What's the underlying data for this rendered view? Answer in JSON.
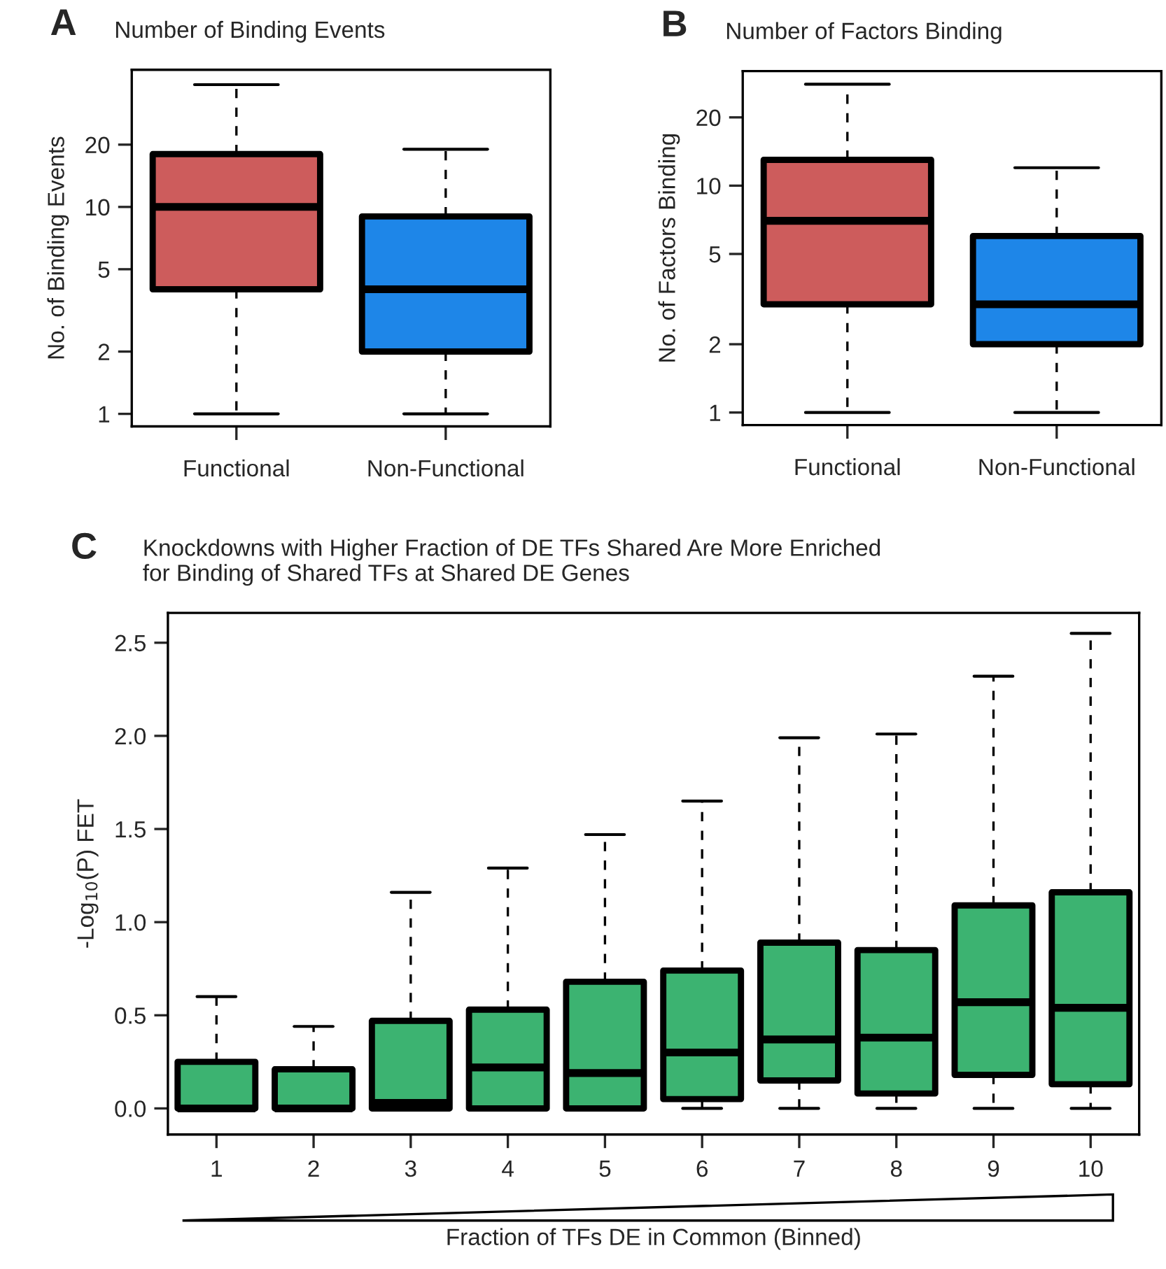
{
  "chart_data": [
    {
      "type": "box",
      "title": "Number of Binding Events",
      "ylabel": "No. of Binding Events",
      "annotations": [
        "A"
      ],
      "log": true,
      "ylim": [
        0.87,
        46
      ],
      "yticks": [
        1,
        2,
        5,
        10,
        20
      ],
      "categories": [
        "Functional",
        "Non-Functional"
      ],
      "boxes": [
        {
          "low": 1,
          "q1": 4,
          "median": 10,
          "q3": 18,
          "high": 39
        },
        {
          "low": 1,
          "q1": 2,
          "median": 4,
          "q3": 9,
          "high": 19
        }
      ],
      "colors": [
        "#cd5c5c",
        "#1e86e8"
      ]
    },
    {
      "type": "box",
      "title": "Number of Factors Binding",
      "ylabel": "No. of Factors Binding",
      "annotations": [
        "B"
      ],
      "log": true,
      "ylim": [
        0.88,
        32
      ],
      "yticks": [
        1,
        2,
        5,
        10,
        20
      ],
      "categories": [
        "Functional",
        "Non-Functional"
      ],
      "boxes": [
        {
          "low": 1,
          "q1": 3,
          "median": 7,
          "q3": 13,
          "high": 28
        },
        {
          "low": 1,
          "q1": 2,
          "median": 3,
          "q3": 6,
          "high": 12
        }
      ],
      "colors": [
        "#cd5c5c",
        "#1e86e8"
      ]
    },
    {
      "type": "box",
      "title": "Knockdowns with Higher Fraction of DE TFs Shared Are More Enriched\nfor Binding of Shared TFs at Shared DE Genes",
      "ylabel": "-Log$_{10}$(P) FET",
      "xlabel": "Fraction of TFs DE in Common (Binned)",
      "annotations": [
        "C"
      ],
      "ylim": [
        -0.14,
        2.66
      ],
      "yticks": [
        {
          "value": 0,
          "label": "0.0"
        },
        0.5,
        {
          "value": 1,
          "label": "1.0"
        },
        1.5,
        {
          "value": 2,
          "label": "2.0"
        },
        2.5
      ],
      "categories": [
        "1",
        "2",
        "3",
        "4",
        "5",
        "6",
        "7",
        "8",
        "9",
        "10"
      ],
      "boxes": [
        {
          "low": 0,
          "q1": 0,
          "median": 0,
          "q3": 0.25,
          "high": 0.6
        },
        {
          "low": 0,
          "q1": 0,
          "median": 0,
          "q3": 0.21,
          "high": 0.44
        },
        {
          "low": 0,
          "q1": 0,
          "median": 0.03,
          "q3": 0.47,
          "high": 1.16
        },
        {
          "low": 0,
          "q1": 0,
          "median": 0.22,
          "q3": 0.53,
          "high": 1.29
        },
        {
          "low": 0,
          "q1": 0,
          "median": 0.19,
          "q3": 0.68,
          "high": 1.47
        },
        {
          "low": 0,
          "q1": 0.05,
          "median": 0.3,
          "q3": 0.74,
          "high": 1.65
        },
        {
          "low": 0,
          "q1": 0.15,
          "median": 0.37,
          "q3": 0.89,
          "high": 1.99
        },
        {
          "low": 0,
          "q1": 0.08,
          "median": 0.38,
          "q3": 0.85,
          "high": 2.01
        },
        {
          "low": 0,
          "q1": 0.18,
          "median": 0.57,
          "q3": 1.09,
          "high": 2.32
        },
        {
          "low": 0,
          "q1": 0.13,
          "median": 0.54,
          "q3": 1.16,
          "high": 2.55
        }
      ],
      "colors": [
        "#3cb371",
        "#3cb371",
        "#3cb371",
        "#3cb371",
        "#3cb371",
        "#3cb371",
        "#3cb371",
        "#3cb371",
        "#3cb371",
        "#3cb371"
      ]
    }
  ]
}
